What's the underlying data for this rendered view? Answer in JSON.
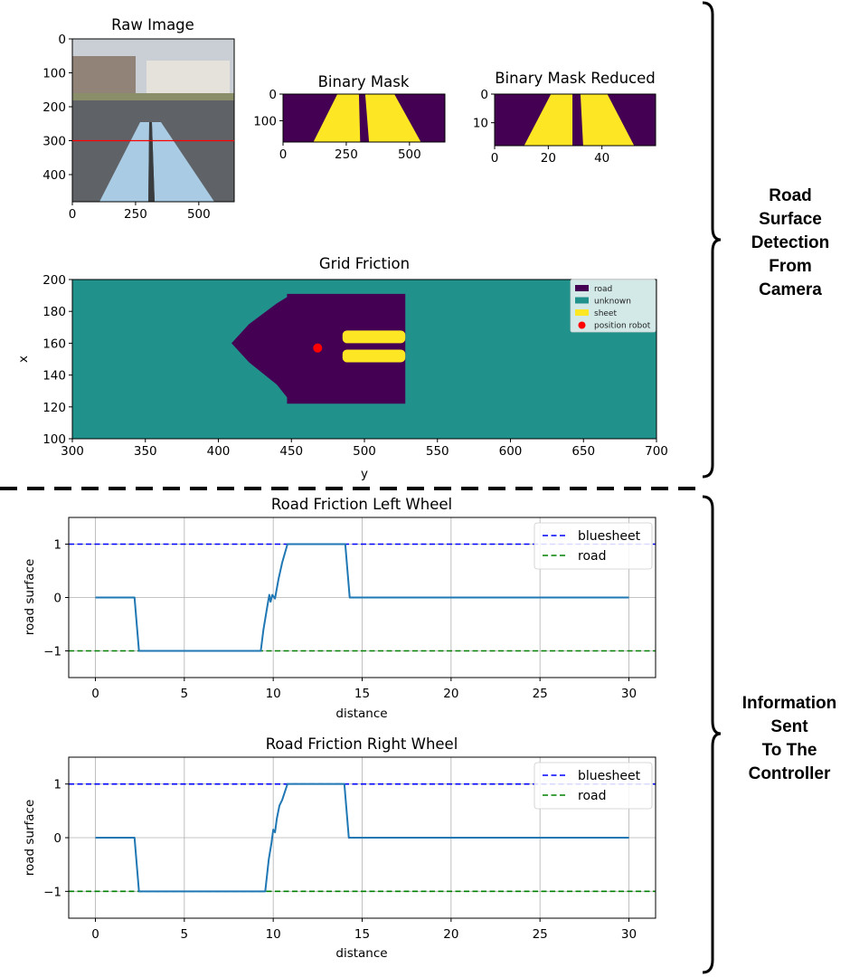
{
  "side_labels": {
    "top": [
      "Road",
      "Surface",
      "Detection",
      "From",
      "Camera"
    ],
    "bottom": [
      "Information",
      "Sent",
      "To The",
      "Controller"
    ]
  },
  "colors": {
    "road": "#440154",
    "unknown": "#21918c",
    "sheet": "#fde725",
    "robot": "#ff0000",
    "series": "#1f77b4",
    "bluesheet": "#0000ff",
    "road_line": "#008000",
    "grid": "#b0b0b0",
    "raw_sky": "#c9cfd4",
    "raw_ground": "#5f6368",
    "raw_sheet": "#a9cbe3",
    "raw_marker": "#ff0000"
  },
  "chart_data": [
    {
      "id": "raw",
      "type": "image",
      "title": "Raw Image",
      "xlim": [
        0,
        640
      ],
      "ylim": [
        480,
        0
      ],
      "xticks": [
        0,
        250,
        500
      ],
      "yticks": [
        0,
        100,
        200,
        300,
        400
      ],
      "marker_y": 300
    },
    {
      "id": "mask",
      "type": "heatmap",
      "title": "Binary Mask",
      "xlim": [
        0,
        640
      ],
      "ylim": [
        180,
        0
      ],
      "xticks": [
        0,
        250,
        500
      ],
      "yticks": [
        0,
        100
      ],
      "polygons": [
        [
          [
            120,
            180
          ],
          [
            305,
            180
          ],
          [
            300,
            0
          ],
          [
            215,
            0
          ]
        ],
        [
          [
            340,
            180
          ],
          [
            545,
            180
          ],
          [
            440,
            0
          ],
          [
            325,
            0
          ]
        ]
      ]
    },
    {
      "id": "mask_reduced",
      "type": "heatmap",
      "title": "Binary Mask Reduced",
      "xlim": [
        0,
        60
      ],
      "ylim": [
        18,
        0
      ],
      "xticks": [
        0,
        20,
        40
      ],
      "yticks": [
        0,
        10
      ],
      "polygons": [
        [
          [
            11,
            18
          ],
          [
            29,
            18
          ],
          [
            29,
            0
          ],
          [
            21,
            0
          ]
        ],
        [
          [
            33,
            18
          ],
          [
            52,
            18
          ],
          [
            42,
            0
          ],
          [
            32,
            0
          ]
        ]
      ]
    },
    {
      "id": "grid_friction",
      "type": "heatmap",
      "title": "Grid Friction",
      "xlabel": "y",
      "ylabel": "x",
      "xlim": [
        300,
        700
      ],
      "ylim": [
        100,
        200
      ],
      "xticks": [
        300,
        350,
        400,
        450,
        500,
        550,
        600,
        650,
        700
      ],
      "yticks": [
        100,
        120,
        140,
        160,
        180,
        200
      ],
      "road_polygon": [
        [
          409,
          160
        ],
        [
          421,
          172
        ],
        [
          440,
          185
        ],
        [
          447,
          189
        ],
        [
          447,
          191
        ],
        [
          528,
          191
        ],
        [
          528,
          122
        ],
        [
          447,
          122
        ],
        [
          447,
          126
        ],
        [
          440,
          134
        ],
        [
          421,
          148
        ],
        [
          409,
          160
        ]
      ],
      "sheet_strips": [
        {
          "y": [
            485,
            528
          ],
          "x": [
            160,
            168
          ]
        },
        {
          "y": [
            485,
            528
          ],
          "x": [
            148,
            156
          ]
        }
      ],
      "robot": {
        "y": 468,
        "x": 157
      },
      "legend": [
        "road",
        "unknown",
        "sheet",
        "position robot"
      ],
      "legend_loc": "upper right"
    },
    {
      "id": "left_wheel",
      "type": "line",
      "title": "Road Friction Left Wheel",
      "xlabel": "distance",
      "ylabel": "road surface",
      "xlim": [
        -1.5,
        31.5
      ],
      "ylim": [
        -1.5,
        1.5
      ],
      "xticks": [
        0,
        5,
        10,
        15,
        20,
        25,
        30
      ],
      "yticks": [
        -1,
        0,
        1
      ],
      "grid": true,
      "legend": [
        "bluesheet",
        "road"
      ],
      "legend_loc": "upper right",
      "hlines": [
        {
          "name": "bluesheet",
          "y": 1
        },
        {
          "name": "road",
          "y": -1
        }
      ],
      "x": [
        0,
        2.2,
        2.45,
        9.3,
        9.45,
        9.6,
        9.7,
        9.78,
        9.85,
        9.95,
        10.1,
        10.3,
        10.5,
        10.8,
        14.05,
        14.3,
        30
      ],
      "y": [
        0,
        0,
        -1,
        -1,
        -0.6,
        -0.3,
        -0.1,
        0.05,
        -0.08,
        0.05,
        -0.02,
        0.35,
        0.65,
        1,
        1,
        0,
        0
      ]
    },
    {
      "id": "right_wheel",
      "type": "line",
      "title": "Road Friction Right Wheel",
      "xlabel": "distance",
      "ylabel": "road surface",
      "xlim": [
        -1.5,
        31.5
      ],
      "ylim": [
        -1.5,
        1.5
      ],
      "xticks": [
        0,
        5,
        10,
        15,
        20,
        25,
        30
      ],
      "yticks": [
        -1,
        0,
        1
      ],
      "grid": true,
      "legend": [
        "bluesheet",
        "road"
      ],
      "legend_loc": "upper right",
      "hlines": [
        {
          "name": "bluesheet",
          "y": 1
        },
        {
          "name": "road",
          "y": -1
        }
      ],
      "x": [
        0,
        2.2,
        2.45,
        9.55,
        9.75,
        9.9,
        10.0,
        10.1,
        10.2,
        10.35,
        10.5,
        10.8,
        14.0,
        14.25,
        30
      ],
      "y": [
        0,
        0,
        -1,
        -1,
        -0.4,
        -0.1,
        0.15,
        0.1,
        0.35,
        0.6,
        0.7,
        1,
        1,
        0,
        0
      ]
    }
  ]
}
